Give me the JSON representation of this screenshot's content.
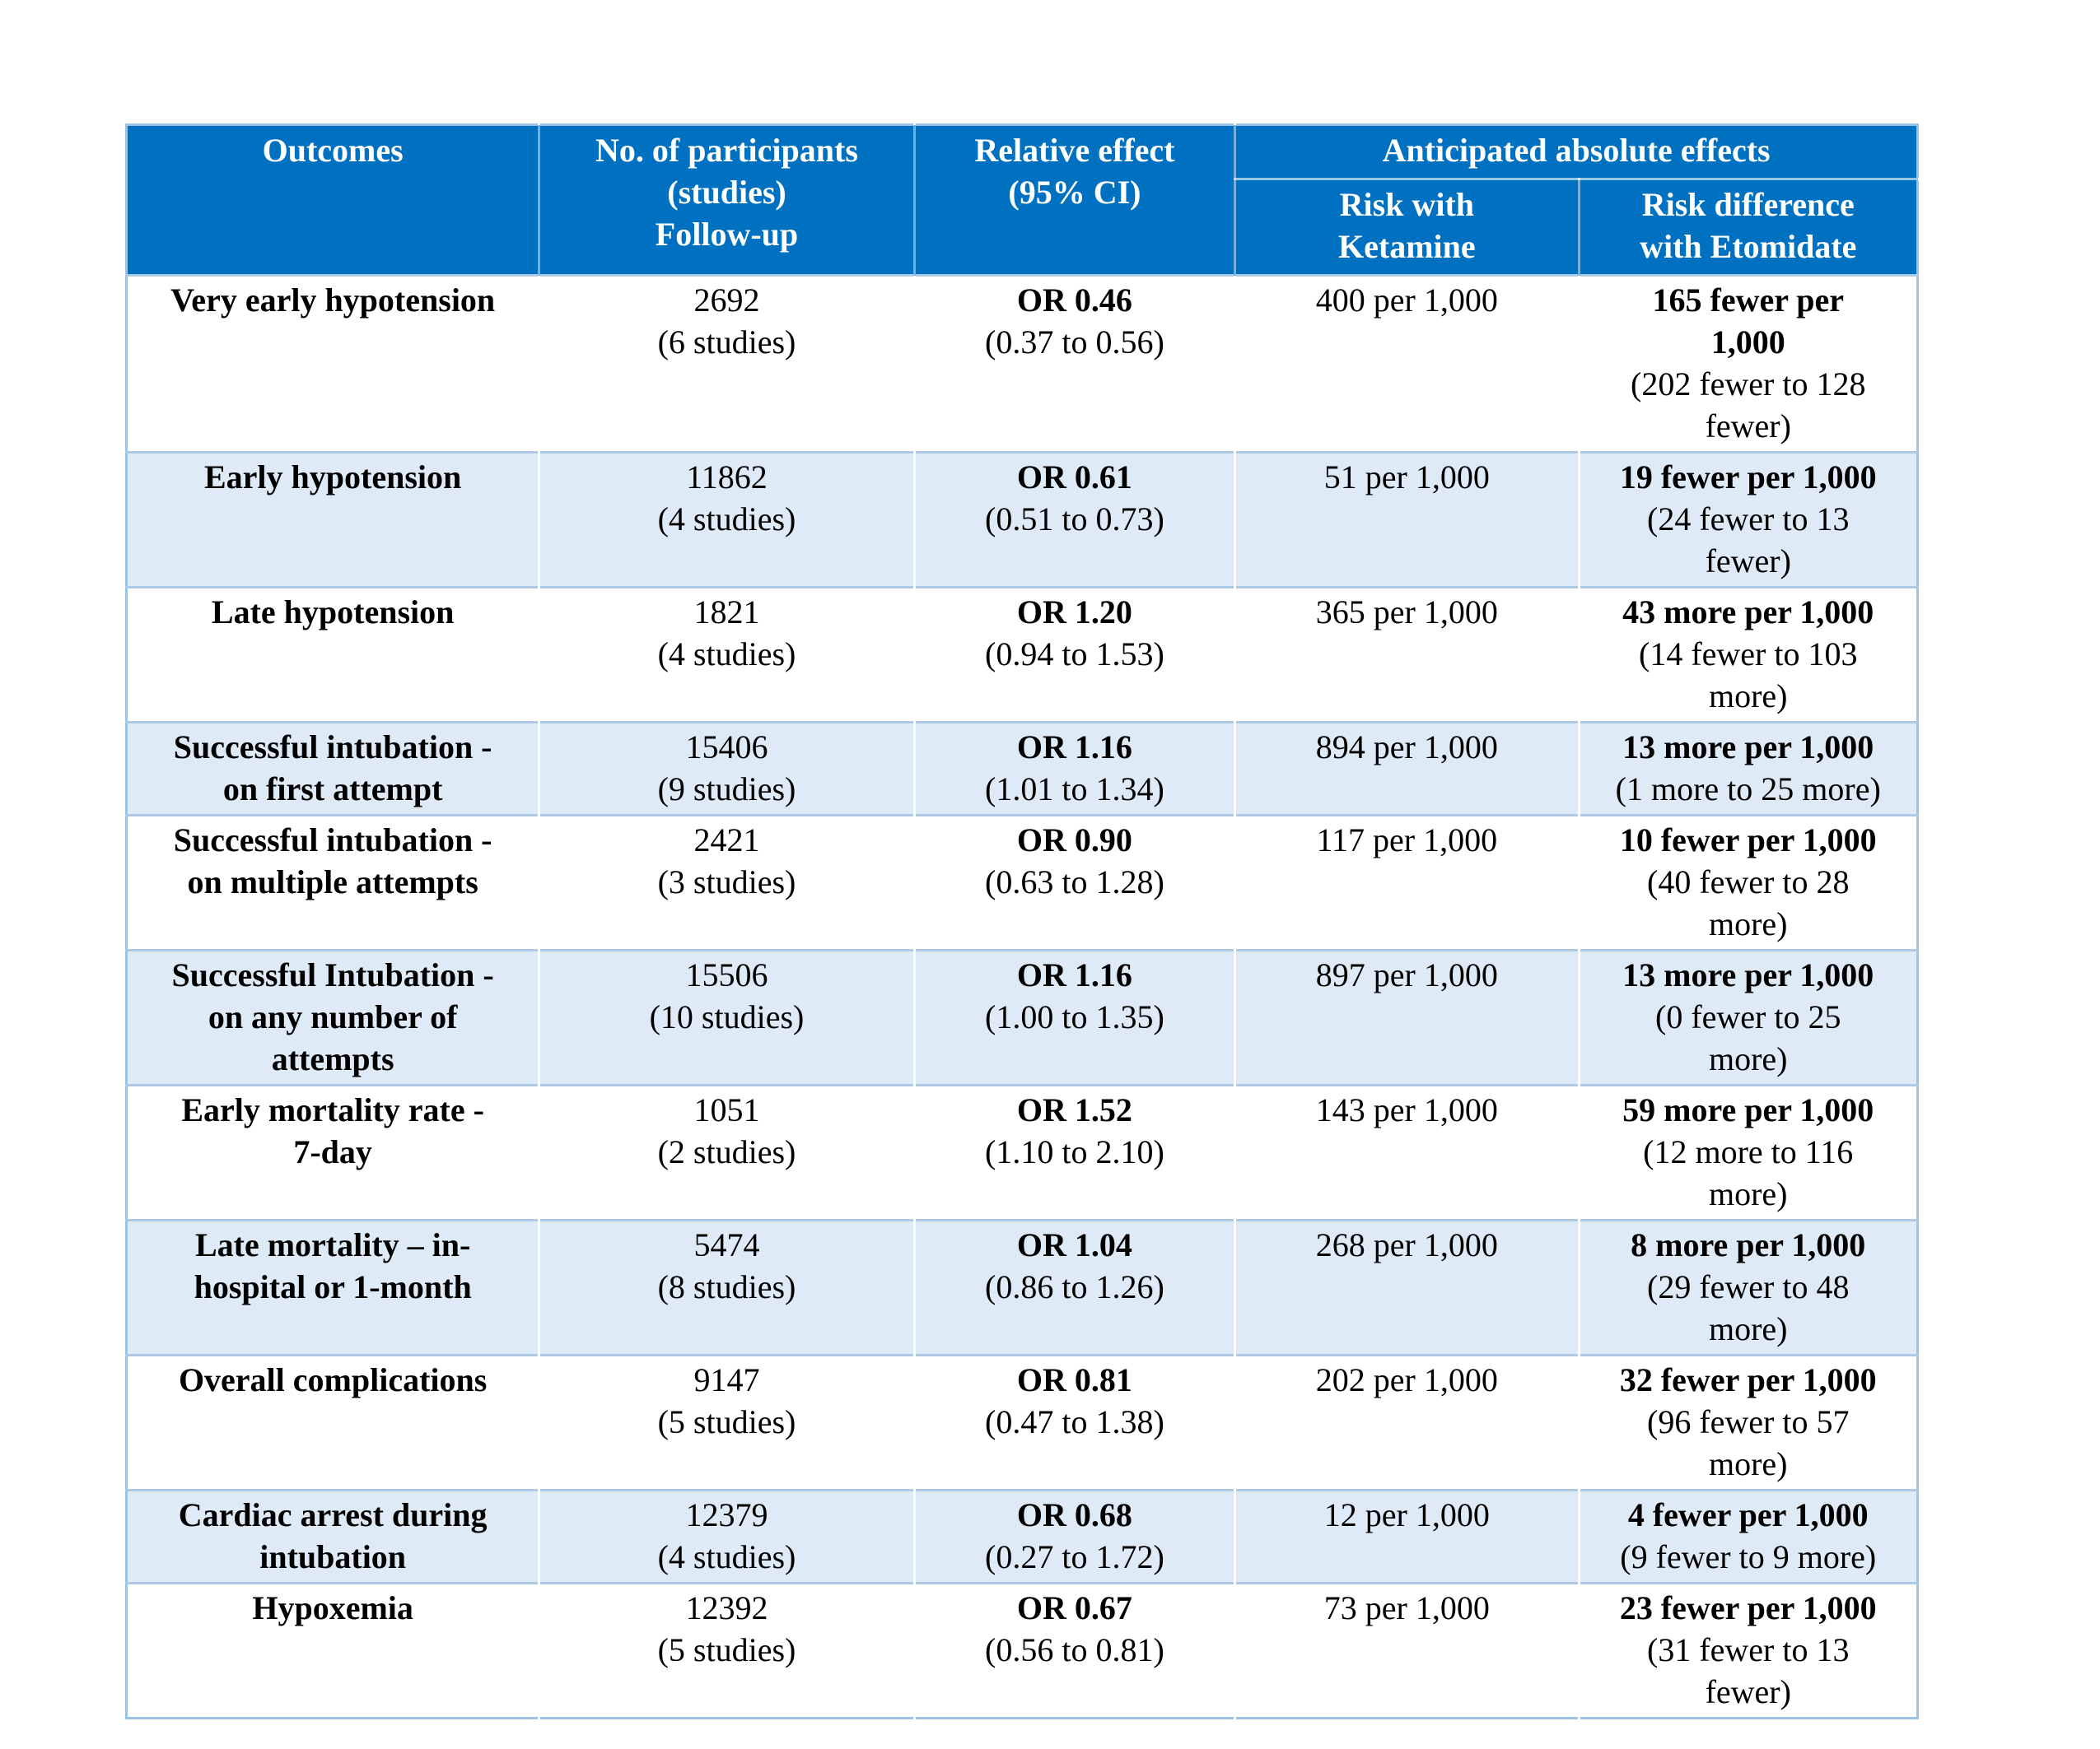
{
  "colors": {
    "header_bg": "#0070C0",
    "header_text": "#FFFFFF",
    "alt_row_bg": "#DEEAF6",
    "row_bg": "#FFFFFF",
    "table_border": "#9CC3E6",
    "row_divider": "#AEC9E4",
    "body_text": "#000000"
  },
  "table": {
    "header": {
      "outcomes": "Outcomes",
      "participants": "No. of participants\n(studies)\nFollow-up",
      "relative_effect": "Relative effect\n(95% CI)",
      "anticipated_group": "Anticipated absolute effects",
      "risk_with_ketamine": "Risk with\nKetamine",
      "risk_difference": "Risk difference\nwith Etomidate"
    },
    "rows": [
      {
        "outcome": "Very early hypotension",
        "participants": "2692",
        "studies": "(6 studies)",
        "or": "OR 0.46",
        "ci": "(0.37 to 0.56)",
        "risk_ketamine": "400 per 1,000",
        "risk_diff_main": "165 fewer per\n1,000",
        "risk_diff_ci": "(202 fewer to 128\nfewer)"
      },
      {
        "outcome": "Early hypotension",
        "participants": "11862",
        "studies": "(4 studies)",
        "or": "OR 0.61",
        "ci": "(0.51 to 0.73)",
        "risk_ketamine": "51 per 1,000",
        "risk_diff_main": "19 fewer per 1,000",
        "risk_diff_ci": "(24 fewer to 13\nfewer)"
      },
      {
        "outcome": "Late hypotension",
        "participants": "1821",
        "studies": "(4 studies)",
        "or": "OR 1.20",
        "ci": "(0.94 to 1.53)",
        "risk_ketamine": "365 per 1,000",
        "risk_diff_main": "43 more per 1,000",
        "risk_diff_ci": "(14 fewer to 103\nmore)"
      },
      {
        "outcome": "Successful intubation -\non first attempt",
        "participants": "15406",
        "studies": "(9 studies)",
        "or": "OR 1.16",
        "ci": "(1.01 to 1.34)",
        "risk_ketamine": "894 per 1,000",
        "risk_diff_main": "13 more per 1,000",
        "risk_diff_ci": "(1 more to 25 more)"
      },
      {
        "outcome": "Successful intubation -\non multiple attempts",
        "participants": "2421",
        "studies": "(3 studies)",
        "or": "OR 0.90",
        "ci": "(0.63 to 1.28)",
        "risk_ketamine": "117 per 1,000",
        "risk_diff_main": "10 fewer per 1,000",
        "risk_diff_ci": "(40 fewer to 28\nmore)"
      },
      {
        "outcome": "Successful Intubation -\non any number of\nattempts",
        "participants": "15506",
        "studies": "(10 studies)",
        "or": "OR 1.16",
        "ci": "(1.00 to 1.35)",
        "risk_ketamine": "897 per 1,000",
        "risk_diff_main": "13 more per 1,000",
        "risk_diff_ci": "(0 fewer to 25\nmore)"
      },
      {
        "outcome": "Early mortality rate -\n7-day",
        "participants": "1051",
        "studies": "(2 studies)",
        "or": "OR 1.52",
        "ci": "(1.10 to 2.10)",
        "risk_ketamine": "143 per 1,000",
        "risk_diff_main": "59 more per 1,000",
        "risk_diff_ci": "(12 more to 116\nmore)"
      },
      {
        "outcome": "Late mortality – in-\nhospital or 1-month",
        "participants": "5474",
        "studies": "(8 studies)",
        "or": "OR 1.04",
        "ci": "(0.86 to 1.26)",
        "risk_ketamine": "268 per 1,000",
        "risk_diff_main": "8 more per 1,000",
        "risk_diff_ci": "(29 fewer to 48\nmore)"
      },
      {
        "outcome": "Overall complications",
        "participants": "9147",
        "studies": "(5 studies)",
        "or": "OR 0.81",
        "ci": "(0.47 to 1.38)",
        "risk_ketamine": "202 per 1,000",
        "risk_diff_main": "32 fewer per 1,000",
        "risk_diff_ci": "(96 fewer to 57\nmore)"
      },
      {
        "outcome": "Cardiac arrest during\nintubation",
        "participants": "12379",
        "studies": "(4 studies)",
        "or": "OR 0.68",
        "ci": "(0.27 to 1.72)",
        "risk_ketamine": "12 per 1,000",
        "risk_diff_main": "4 fewer per 1,000",
        "risk_diff_ci": "(9 fewer to 9 more)"
      },
      {
        "outcome": "Hypoxemia",
        "participants": "12392",
        "studies": "(5 studies)",
        "or": "OR 0.67",
        "ci": "(0.56 to 0.81)",
        "risk_ketamine": "73 per 1,000",
        "risk_diff_main": "23 fewer per 1,000",
        "risk_diff_ci": "(31 fewer to 13\nfewer)"
      }
    ]
  }
}
